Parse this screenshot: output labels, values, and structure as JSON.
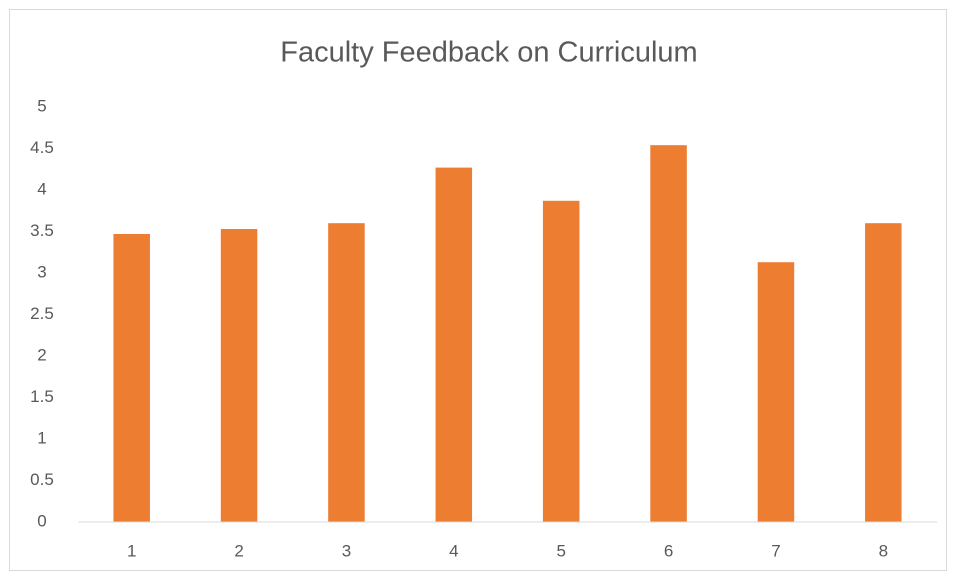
{
  "chart_data": {
    "type": "bar",
    "title": "Faculty Feedback on Curriculum",
    "categories": [
      "1",
      "2",
      "3",
      "4",
      "5",
      "6",
      "7",
      "8"
    ],
    "values": [
      3.47,
      3.53,
      3.6,
      4.27,
      3.87,
      4.54,
      3.13,
      3.6
    ],
    "color": "#ed7d31",
    "ylim": [
      0,
      5
    ],
    "yticks": [
      0,
      0.5,
      1,
      1.5,
      2,
      2.5,
      3,
      3.5,
      4,
      4.5,
      5
    ],
    "grid": false
  }
}
